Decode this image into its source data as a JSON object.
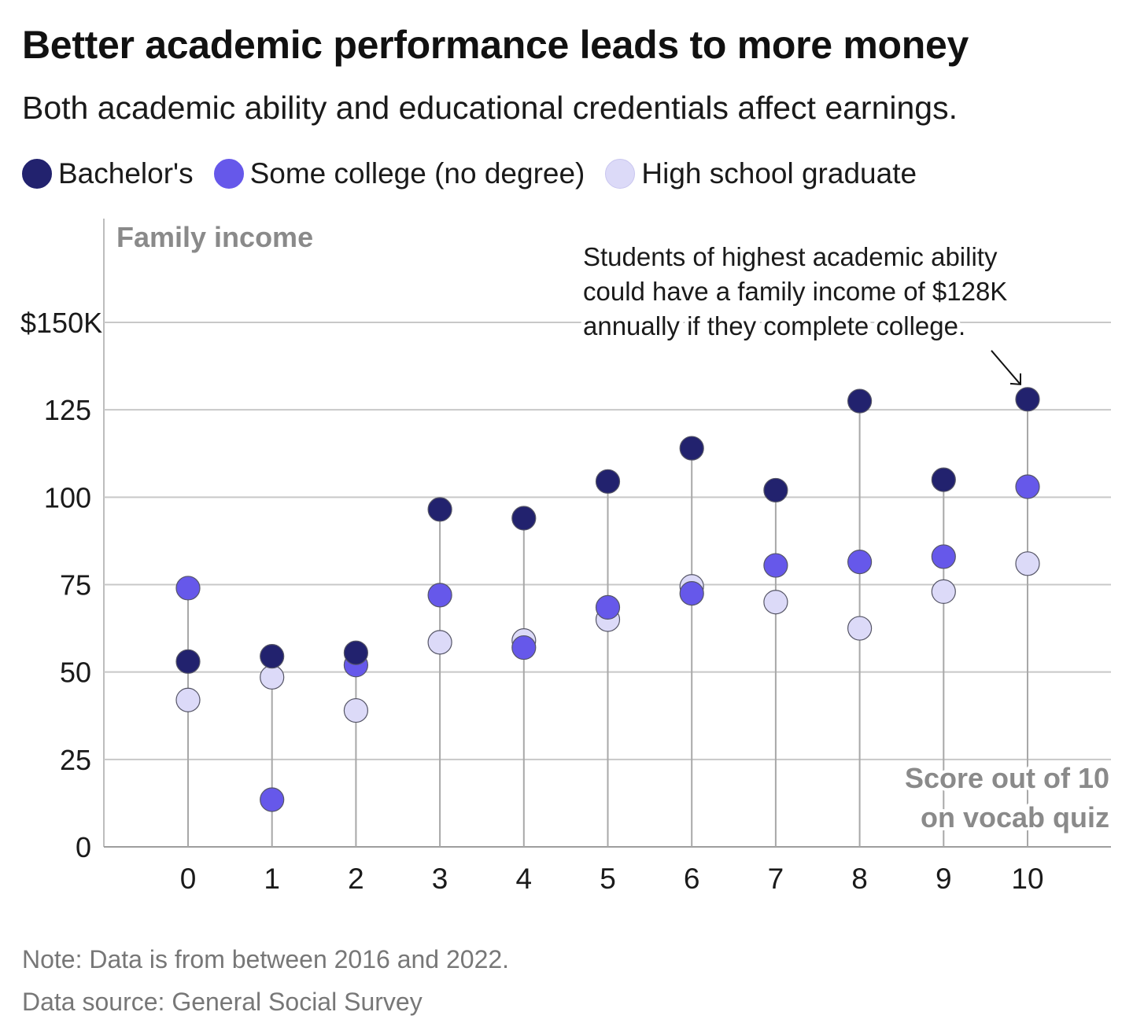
{
  "title": "Better academic performance leads to more money",
  "subtitle": "Both academic ability and educational credentials affect earnings.",
  "legend": [
    {
      "label": "Bachelor's",
      "color": "#22226e"
    },
    {
      "label": "Some college (no degree)",
      "color": "#6658ea"
    },
    {
      "label": "High school graduate",
      "color": "#dcdaf8"
    }
  ],
  "chart_data": {
    "type": "scatter",
    "ylabel": "Family income",
    "xlabel": [
      "Score out of 10",
      "on vocab quiz"
    ],
    "x": [
      0,
      1,
      2,
      3,
      4,
      5,
      6,
      7,
      8,
      9,
      10
    ],
    "x_tick_labels": [
      "0",
      "1",
      "2",
      "3",
      "4",
      "5",
      "6",
      "7",
      "8",
      "9",
      "10"
    ],
    "y_ticks": [
      0,
      25,
      50,
      75,
      100,
      125,
      150
    ],
    "y_tick_labels": [
      "0",
      "25",
      "50",
      "75",
      "100",
      "125",
      "$150K"
    ],
    "ylim": [
      0,
      150
    ],
    "grid": true,
    "legend_position": "top",
    "series": [
      {
        "name": "Bachelor's",
        "color": "#22226e",
        "values": [
          53,
          54.5,
          55.5,
          96.5,
          94,
          104.5,
          114,
          102,
          127.5,
          105,
          128
        ]
      },
      {
        "name": "Some college (no degree)",
        "color": "#6658ea",
        "values": [
          74,
          13.5,
          52,
          72,
          57,
          68.5,
          72.5,
          80.5,
          81.5,
          83,
          103
        ]
      },
      {
        "name": "High school graduate",
        "color": "#dcdaf8",
        "values": [
          42,
          48.5,
          39,
          58.5,
          59,
          65,
          74.5,
          70,
          62.5,
          73,
          81
        ]
      }
    ],
    "annotation": {
      "lines": [
        "Students of highest academic ability",
        "could have a family income of $128K",
        "annually if they complete college."
      ],
      "target_x": 10,
      "target_y": 128
    }
  },
  "footer": {
    "note": "Note: Data is from between 2016 and 2022.",
    "source": "Data source: General Social Survey"
  }
}
